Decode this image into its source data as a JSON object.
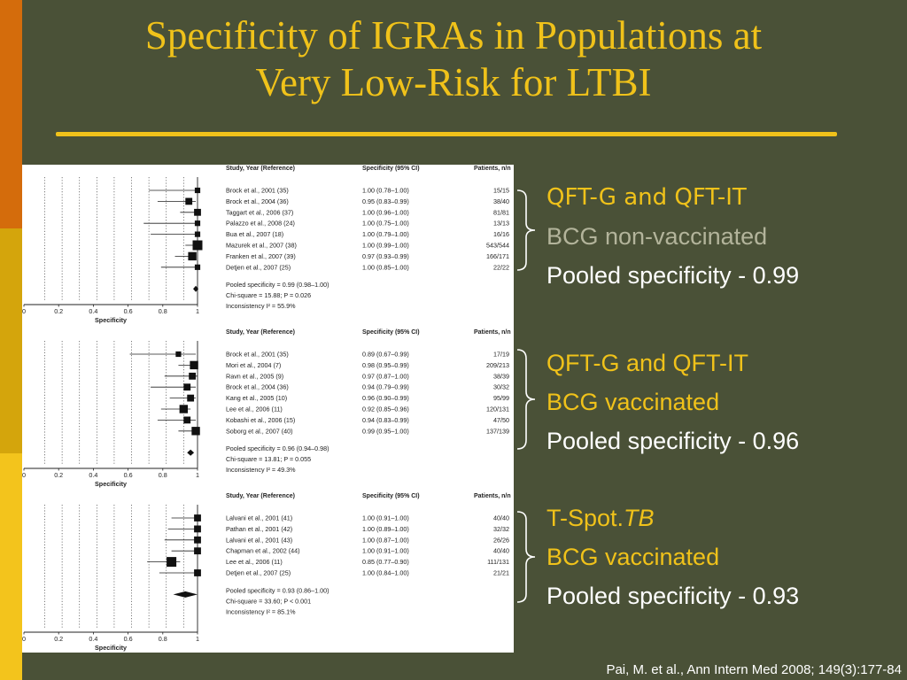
{
  "slide": {
    "title_line1": "Specificity of IGRAs in Populations at",
    "title_line2": "Very Low-Risk for LTBI",
    "citation": "Pai, M. et al., Ann Intern Med 2008; 149(3):177-84"
  },
  "colors": {
    "background": "#4a5137",
    "title": "#f0c21a",
    "accent_yellow": "#f0c21a",
    "muted_green": "#b3b49b",
    "white": "#ffffff",
    "strip_orange": "#d46c0c",
    "strip_gold": "#d4a50c",
    "strip_yellow": "#f3c41c"
  },
  "annotations": [
    {
      "test": "QFT-G and QFT-IT",
      "population": "BCG non-vaccinated",
      "pooled": "Pooled specificity - 0.99"
    },
    {
      "test": "QFT-G and QFT-IT",
      "population": "BCG vaccinated",
      "pooled": "Pooled specificity - 0.96"
    },
    {
      "test_prefix": "T-Spot.",
      "test_italic": "TB",
      "population": "BCG vaccinated",
      "pooled": "Pooled specificity - 0.93"
    }
  ],
  "chart_data": [
    {
      "type": "forest",
      "header": {
        "study": "Study, Year (Reference)",
        "spec": "Specificity (95% CI)",
        "patients": "Patients, n/n"
      },
      "xlabel": "Specificity",
      "xlim": [
        0,
        1
      ],
      "x_ticks": [
        "0",
        "0.2",
        "0.4",
        "0.6",
        "0.8",
        "1"
      ],
      "rows": [
        {
          "study": "Brock et al., 2001 (35)",
          "ci_text": "1.00  (0.78–1.00)",
          "patients": "15/15",
          "est": 1.0,
          "lo": 0.78,
          "hi": 1.0,
          "weight": 2
        },
        {
          "study": "Brock et al., 2004 (36)",
          "ci_text": "0.95  (0.83–0.99)",
          "patients": "38/40",
          "est": 0.95,
          "lo": 0.83,
          "hi": 0.99,
          "weight": 3
        },
        {
          "study": "Taggart et al., 2006 (37)",
          "ci_text": "1.00  (0.96–1.00)",
          "patients": "81/81",
          "est": 1.0,
          "lo": 0.96,
          "hi": 1.0,
          "weight": 3
        },
        {
          "study": "Palazzo et al., 2008 (24)",
          "ci_text": "1.00  (0.75–1.00)",
          "patients": "13/13",
          "est": 1.0,
          "lo": 0.75,
          "hi": 1.0,
          "weight": 2
        },
        {
          "study": "Bua et al., 2007 (18)",
          "ci_text": "1.00  (0.79–1.00)",
          "patients": "16/16",
          "est": 1.0,
          "lo": 0.79,
          "hi": 1.0,
          "weight": 2
        },
        {
          "study": "Mazurek et al., 2007 (38)",
          "ci_text": "1.00  (0.99–1.00)",
          "patients": "543/544",
          "est": 1.0,
          "lo": 0.99,
          "hi": 1.0,
          "weight": 5
        },
        {
          "study": "Franken et al., 2007 (39)",
          "ci_text": "0.97  (0.93–0.99)",
          "patients": "166/171",
          "est": 0.97,
          "lo": 0.93,
          "hi": 0.99,
          "weight": 4
        },
        {
          "study": "Detjen et al., 2007 (25)",
          "ci_text": "1.00  (0.85–1.00)",
          "patients": "22/22",
          "est": 1.0,
          "lo": 0.85,
          "hi": 1.0,
          "weight": 2
        }
      ],
      "pooled": {
        "est": 0.99,
        "lo": 0.98,
        "hi": 1.0
      },
      "stats": [
        "Pooled specificity = 0.99 (0.98–1.00)",
        "Chi-square = 15.88; P = 0.026",
        "Inconsistency I² = 55.9%"
      ]
    },
    {
      "type": "forest",
      "header": {
        "study": "Study, Year (Reference)",
        "spec": "Specificity (95% CI)",
        "patients": "Patients, n/n"
      },
      "xlabel": "Specificity",
      "xlim": [
        0,
        1
      ],
      "x_ticks": [
        "0",
        "0.2",
        "0.4",
        "0.6",
        "0.8",
        "1"
      ],
      "rows": [
        {
          "study": "Brock et al., 2001 (35)",
          "ci_text": "0.89  (0.67–0.99)",
          "patients": "17/19",
          "est": 0.89,
          "lo": 0.67,
          "hi": 0.99,
          "weight": 2
        },
        {
          "study": "Mori et al., 2004 (7)",
          "ci_text": "0.98  (0.95–0.99)",
          "patients": "209/213",
          "est": 0.98,
          "lo": 0.95,
          "hi": 0.99,
          "weight": 4
        },
        {
          "study": "Ravn et al., 2005 (9)",
          "ci_text": "0.97  (0.87–1.00)",
          "patients": "38/39",
          "est": 0.97,
          "lo": 0.87,
          "hi": 1.0,
          "weight": 3
        },
        {
          "study": "Brock et al., 2004 (36)",
          "ci_text": "0.94  (0.79–0.99)",
          "patients": "30/32",
          "est": 0.94,
          "lo": 0.79,
          "hi": 0.99,
          "weight": 3
        },
        {
          "study": "Kang et al., 2005 (10)",
          "ci_text": "0.96  (0.90–0.99)",
          "patients": "95/99",
          "est": 0.96,
          "lo": 0.9,
          "hi": 0.99,
          "weight": 3
        },
        {
          "study": "Lee et al., 2006 (11)",
          "ci_text": "0.92  (0.85–0.96)",
          "patients": "120/131",
          "est": 0.92,
          "lo": 0.85,
          "hi": 0.96,
          "weight": 4
        },
        {
          "study": "Kobashi et al., 2006 (15)",
          "ci_text": "0.94  (0.83–0.99)",
          "patients": "47/50",
          "est": 0.94,
          "lo": 0.83,
          "hi": 0.99,
          "weight": 3
        },
        {
          "study": "Soborg et al., 2007 (40)",
          "ci_text": "0.99  (0.95–1.00)",
          "patients": "137/139",
          "est": 0.99,
          "lo": 0.95,
          "hi": 1.0,
          "weight": 4
        }
      ],
      "pooled": {
        "est": 0.96,
        "lo": 0.94,
        "hi": 0.98
      },
      "stats": [
        "Pooled specificity = 0.96 (0.94–0.98)",
        "Chi-square = 13.81; P = 0.055",
        "Inconsistency I² = 49.3%"
      ]
    },
    {
      "type": "forest",
      "header": {
        "study": "Study, Year (Reference)",
        "spec": "Specificity (95% CI)",
        "patients": "Patients, n/n"
      },
      "xlabel": "Specificity",
      "xlim": [
        0,
        1
      ],
      "x_ticks": [
        "0",
        "0.2",
        "0.4",
        "0.6",
        "0.8",
        "1"
      ],
      "rows": [
        {
          "study": "Lalvani et al., 2001 (41)",
          "ci_text": "1.00  (0.91–1.00)",
          "patients": "40/40",
          "est": 1.0,
          "lo": 0.91,
          "hi": 1.0,
          "weight": 3
        },
        {
          "study": "Pathan et al., 2001 (42)",
          "ci_text": "1.00  (0.89–1.00)",
          "patients": "32/32",
          "est": 1.0,
          "lo": 0.89,
          "hi": 1.0,
          "weight": 3
        },
        {
          "study": "Lalvani et al., 2001 (43)",
          "ci_text": "1.00  (0.87–1.00)",
          "patients": "26/26",
          "est": 1.0,
          "lo": 0.87,
          "hi": 1.0,
          "weight": 3
        },
        {
          "study": "Chapman et al., 2002 (44)",
          "ci_text": "1.00  (0.91–1.00)",
          "patients": "40/40",
          "est": 1.0,
          "lo": 0.91,
          "hi": 1.0,
          "weight": 3
        },
        {
          "study": "Lee et al., 2006 (11)",
          "ci_text": "0.85  (0.77–0.90)",
          "patients": "111/131",
          "est": 0.85,
          "lo": 0.77,
          "hi": 0.9,
          "weight": 5
        },
        {
          "study": "Detjen et al., 2007 (25)",
          "ci_text": "1.00  (0.84–1.00)",
          "patients": "21/21",
          "est": 1.0,
          "lo": 0.84,
          "hi": 1.0,
          "weight": 3
        }
      ],
      "pooled": {
        "est": 0.93,
        "lo": 0.86,
        "hi": 1.0
      },
      "stats": [
        "Pooled specificity = 0.93 (0.86–1.00)",
        "Chi-square = 33.60; P < 0.001",
        "Inconsistency I² = 85.1%"
      ]
    }
  ]
}
